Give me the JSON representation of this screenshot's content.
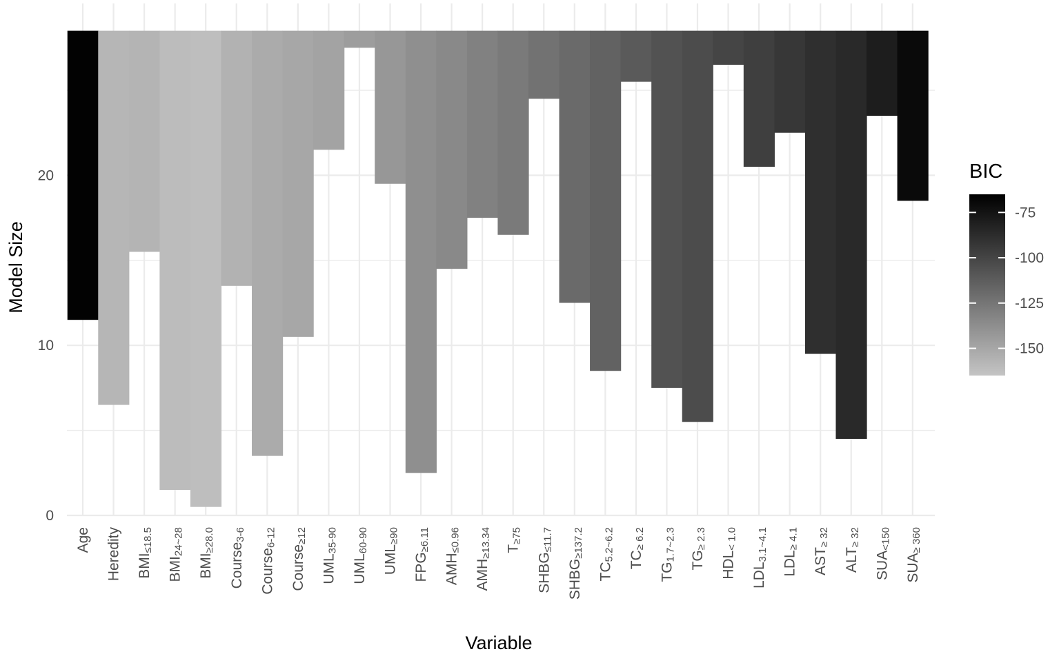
{
  "chart_data": {
    "type": "heatmap",
    "xlabel": "Variable",
    "ylabel": "Model Size",
    "ylim": [
      0,
      29
    ],
    "y_ticks": [
      0,
      10,
      20
    ],
    "grid": true,
    "legend_position": "right",
    "legend": {
      "title": "BIC",
      "ticks": [
        -75,
        -100,
        -125,
        -150
      ],
      "range": [
        -165,
        -65
      ],
      "colors": [
        "#c4c4c4",
        "#000000"
      ]
    },
    "top": 28.5,
    "categories": [
      {
        "base": "Age",
        "sub": "",
        "bic": -66,
        "from": 11.5
      },
      {
        "base": "Heredity",
        "sub": "",
        "bic": -158,
        "from": 6.5
      },
      {
        "base": "BMI",
        "sub": "≤18.5",
        "bic": -157,
        "from": 15.5
      },
      {
        "base": "BMI",
        "sub": "24~28",
        "bic": -161,
        "from": 1.5
      },
      {
        "base": "BMI",
        "sub": "≥28.0",
        "bic": -162,
        "from": 0.5
      },
      {
        "base": "Course",
        "sub": "3-6",
        "bic": -156,
        "from": 13.5
      },
      {
        "base": "Course",
        "sub": "6-12",
        "bic": -152,
        "from": 3.5
      },
      {
        "base": "Course",
        "sub": "≥12",
        "bic": -150,
        "from": 10.5
      },
      {
        "base": "UML",
        "sub": "35-90",
        "bic": -148,
        "from": 21.5
      },
      {
        "base": "UML",
        "sub": "60-90",
        "bic": -145,
        "from": 27.5
      },
      {
        "base": "UML",
        "sub": "≥90",
        "bic": -142,
        "from": 19.5
      },
      {
        "base": "FPG",
        "sub": "≥6.11",
        "bic": -138,
        "from": 2.5
      },
      {
        "base": "AMH",
        "sub": "≤0.96",
        "bic": -135,
        "from": 14.5
      },
      {
        "base": "AMH",
        "sub": "≥13.34",
        "bic": -131,
        "from": 17.5
      },
      {
        "base": "T",
        "sub": "≥75",
        "bic": -127,
        "from": 16.5
      },
      {
        "base": "SHBG",
        "sub": "≤11.7",
        "bic": -123,
        "from": 24.5
      },
      {
        "base": "SHBG",
        "sub": "≥137.2",
        "bic": -119,
        "from": 12.5
      },
      {
        "base": "TC",
        "sub": "5.2~6.2",
        "bic": -115,
        "from": 8.5
      },
      {
        "base": "TC",
        "sub": "≥ 6.2",
        "bic": -111,
        "from": 25.5
      },
      {
        "base": "TG",
        "sub": "1.7~2.3",
        "bic": -107,
        "from": 7.5
      },
      {
        "base": "TG",
        "sub": "≥ 2.3",
        "bic": -104,
        "from": 5.5
      },
      {
        "base": "HDL",
        "sub": "< 1.0",
        "bic": -100,
        "from": 26.5
      },
      {
        "base": "LDL",
        "sub": "3.1~4.1",
        "bic": -97,
        "from": 20.5
      },
      {
        "base": "LDL",
        "sub": "≥ 4.1",
        "bic": -93,
        "from": 22.5
      },
      {
        "base": "AST",
        "sub": "≥ 32",
        "bic": -89,
        "from": 9.5
      },
      {
        "base": "ALT",
        "sub": "≥ 32",
        "bic": -86,
        "from": 4.5
      },
      {
        "base": "SUA",
        "sub": "<150",
        "bic": -80,
        "from": 23.5
      },
      {
        "base": "SUA",
        "sub": "≥ 360",
        "bic": -70,
        "from": 18.5
      }
    ]
  }
}
